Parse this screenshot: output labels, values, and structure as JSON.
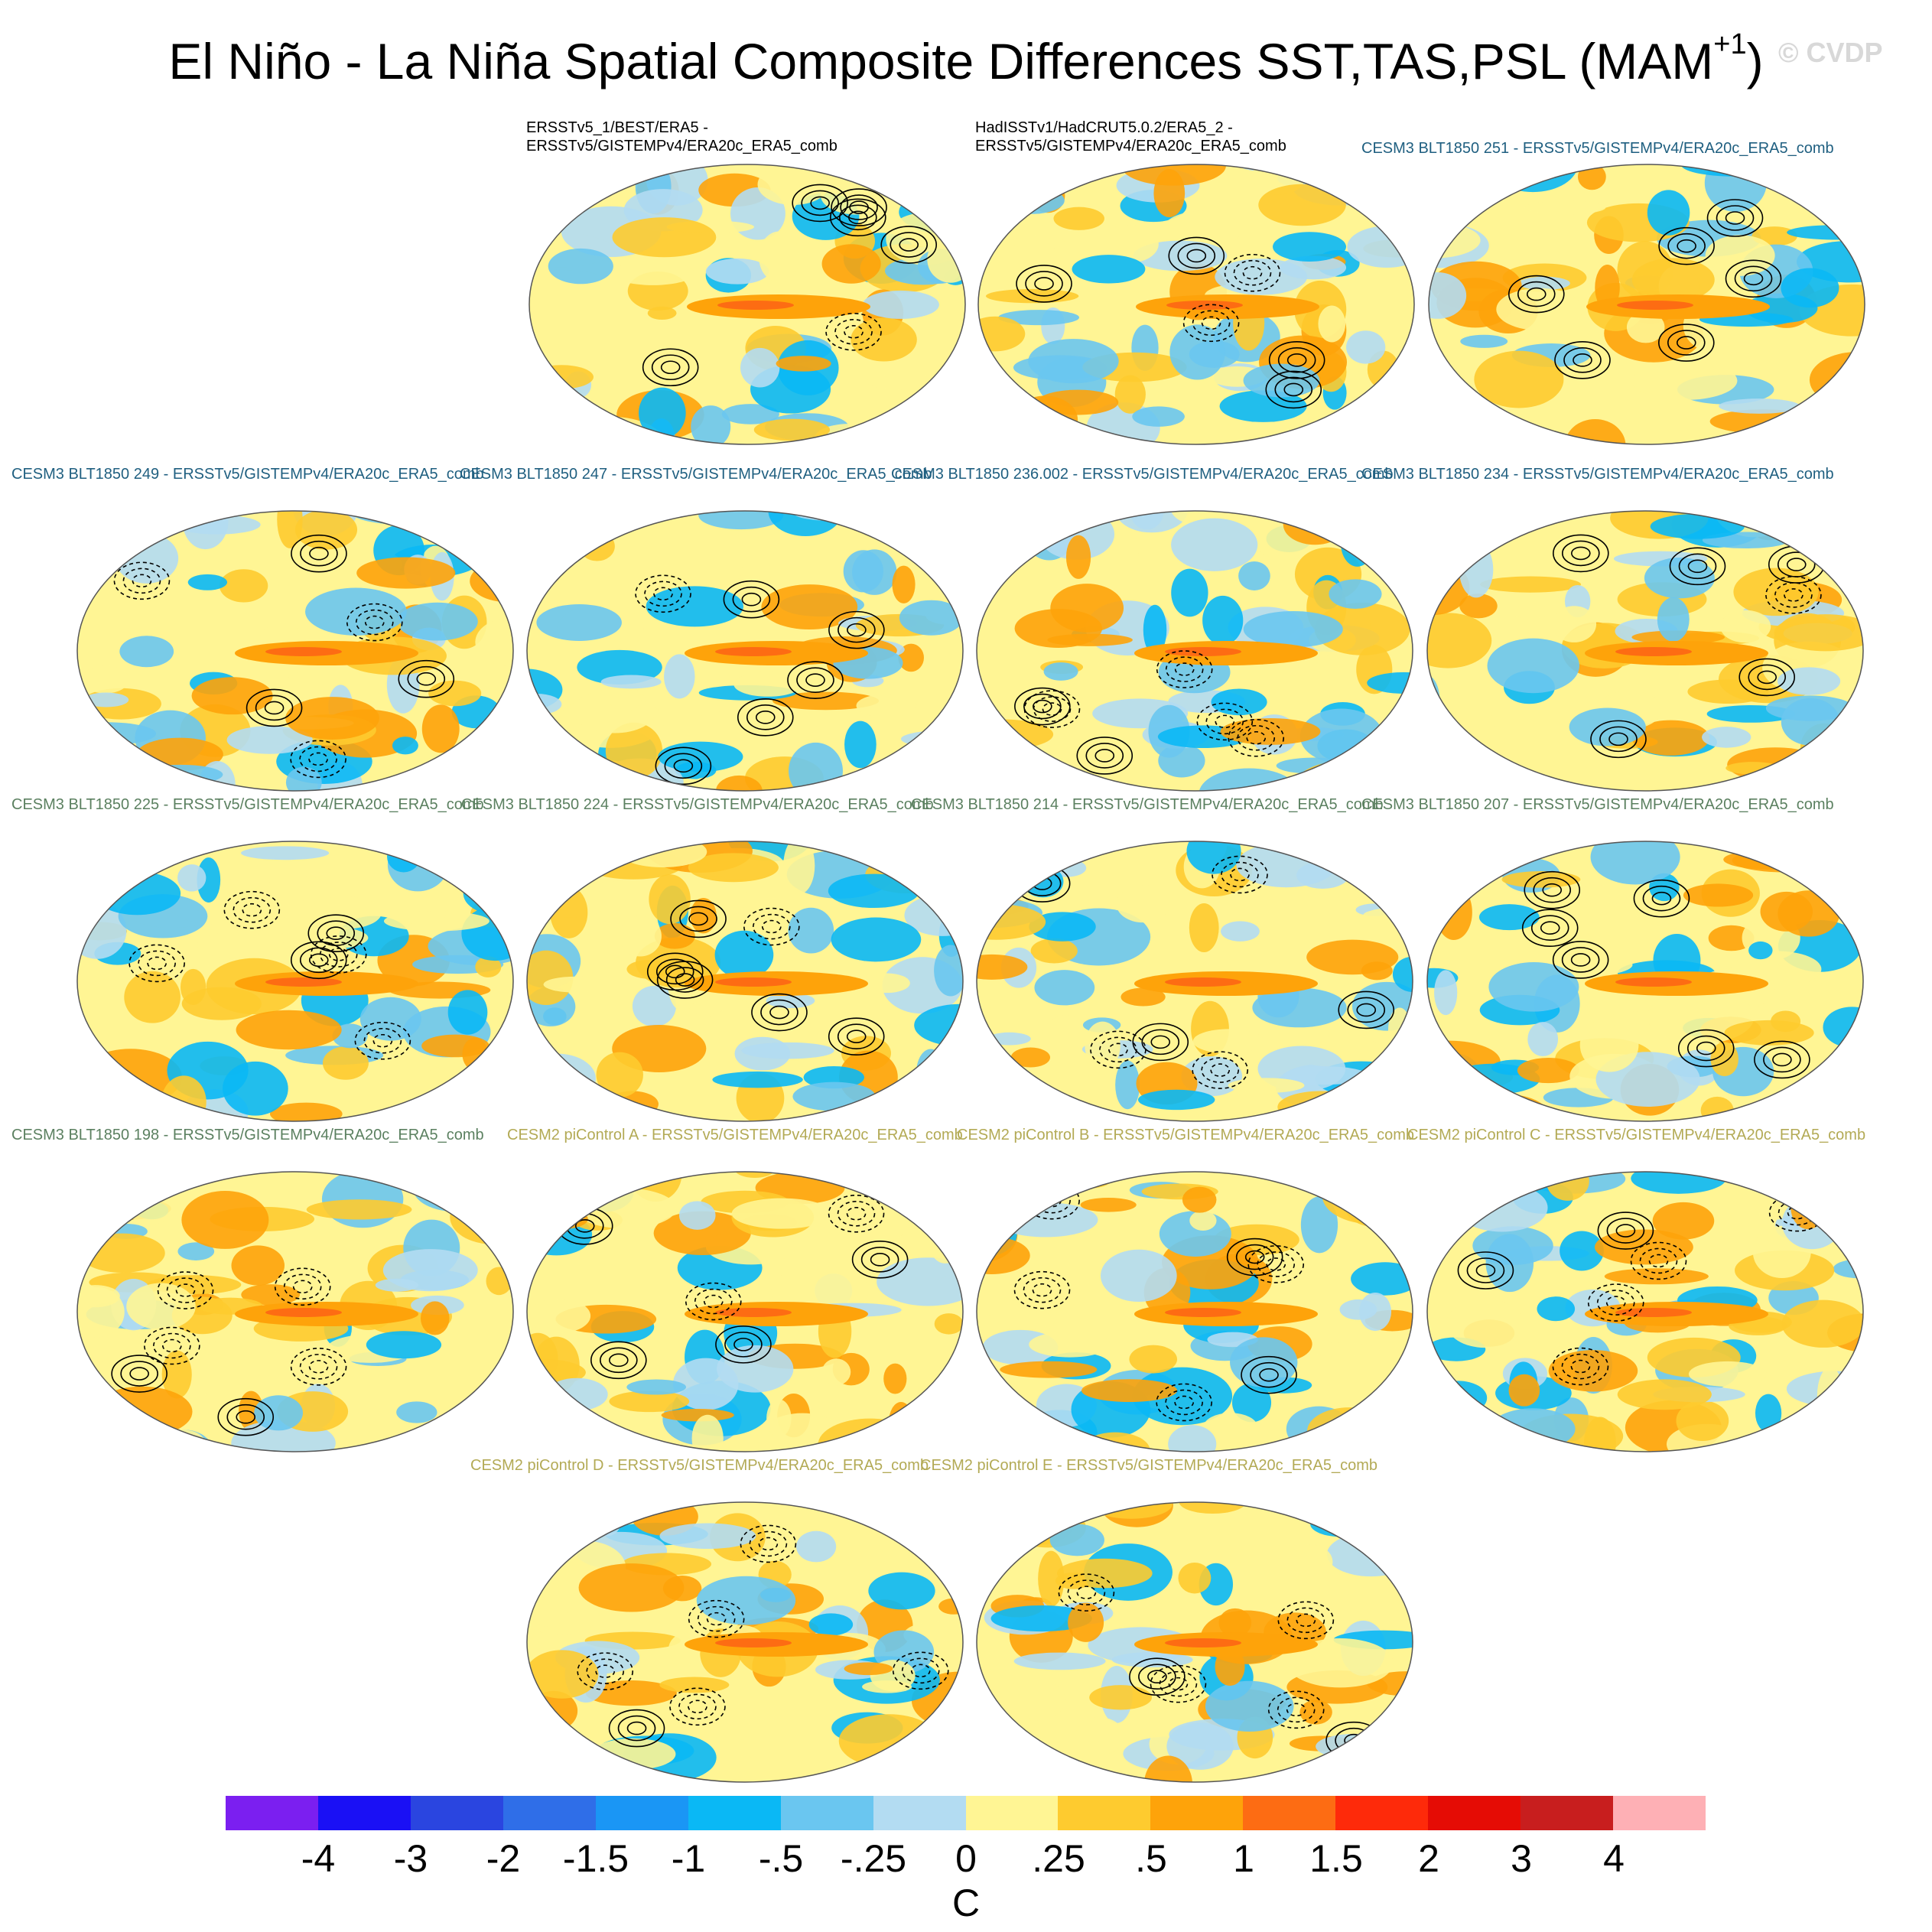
{
  "header": {
    "title": "El Niño - La Niña Spatial Composite Differences SST,TAS,PSL (MAM",
    "title_superscript": "+1",
    "title_end": ")",
    "watermark": "© CVDP"
  },
  "panels": [
    {
      "title": "ERSSTv5_1/BEST/ERA5 -\nERSSTv5/GISTEMPv4/ERA20c_ERA5_comb",
      "color": "#000000"
    },
    {
      "title": "HadISSTv1/HadCRUT5.0.2/ERA5_2 -\nERSSTv5/GISTEMPv4/ERA20c_ERA5_comb",
      "color": "#000000"
    },
    {
      "title": "CESM3 BLT1850 251 - ERSSTv5/GISTEMPv4/ERA20c_ERA5_comb",
      "color": "#1f5f80"
    },
    {
      "title": "CESM3 BLT1850 249 - ERSSTv5/GISTEMPv4/ERA20c_ERA5_comb",
      "color": "#1f5f80"
    },
    {
      "title": "CESM3 BLT1850 247 - ERSSTv5/GISTEMPv4/ERA20c_ERA5_comb",
      "color": "#1f5f80"
    },
    {
      "title": "CESM3 BLT1850 236.002 - ERSSTv5/GISTEMPv4/ERA20c_ERA5_comb",
      "color": "#1f5f80"
    },
    {
      "title": "CESM3 BLT1850 234 - ERSSTv5/GISTEMPv4/ERA20c_ERA5_comb",
      "color": "#1f5f80"
    },
    {
      "title": "CESM3 BLT1850 225 - ERSSTv5/GISTEMPv4/ERA20c_ERA5_comb",
      "color": "#5b8060"
    },
    {
      "title": "CESM3 BLT1850 224 - ERSSTv5/GISTEMPv4/ERA20c_ERA5_comb",
      "color": "#5b8060"
    },
    {
      "title": "CESM3 BLT1850 214 - ERSSTv5/GISTEMPv4/ERA20c_ERA5_comb",
      "color": "#5b8060"
    },
    {
      "title": "CESM3 BLT1850 207 - ERSSTv5/GISTEMPv4/ERA20c_ERA5_comb",
      "color": "#5b8060"
    },
    {
      "title": "CESM3 BLT1850 198 - ERSSTv5/GISTEMPv4/ERA20c_ERA5_comb",
      "color": "#5b8060"
    },
    {
      "title": "CESM2 piControl A - ERSSTv5/GISTEMPv4/ERA20c_ERA5_comb",
      "color": "#b3aa55"
    },
    {
      "title": "CESM2 piControl B - ERSSTv5/GISTEMPv4/ERA20c_ERA5_comb",
      "color": "#b3aa55"
    },
    {
      "title": "CESM2 piControl C - ERSSTv5/GISTEMPv4/ERA20c_ERA5_comb",
      "color": "#b3aa55"
    },
    {
      "title": "CESM2 piControl D - ERSSTv5/GISTEMPv4/ERA20c_ERA5_comb",
      "color": "#b3aa55"
    },
    {
      "title": "CESM2 piControl E - ERSSTv5/GISTEMPv4/ERA20c_ERA5_comb",
      "color": "#b3aa55"
    }
  ],
  "colorbar": {
    "colors": [
      "#7b1ff0",
      "#1a10f5",
      "#2a45e0",
      "#2f6ee8",
      "#1a96f5",
      "#0ab8f5",
      "#6ac6f0",
      "#b3dcf2",
      "#fff594",
      "#fecb2f",
      "#fea30a",
      "#fd6c13",
      "#fe2a0a",
      "#e50c05",
      "#c81e1e",
      "#feb0b5"
    ],
    "ticks": [
      "-4",
      "-3",
      "-2",
      "-1.5",
      "-1",
      "-.5",
      "-.25",
      "0",
      ".25",
      ".5",
      "1",
      "1.5",
      "2",
      "3",
      "4"
    ],
    "units": "C"
  }
}
